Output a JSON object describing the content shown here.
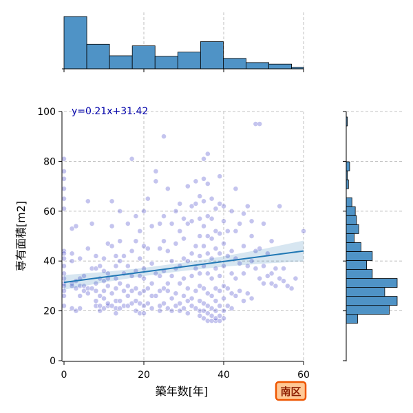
{
  "chart_data": {
    "type": "scatter",
    "xlabel": "築年数[年]",
    "ylabel": "専有面積[m2]",
    "xlim": [
      0,
      60
    ],
    "ylim": [
      0,
      100
    ],
    "xticks": [
      0,
      20,
      40,
      60
    ],
    "yticks": [
      0,
      20,
      40,
      60,
      80,
      100
    ],
    "grid": true,
    "annotation": "y=0.21x+31.42",
    "badge": "南区",
    "regression": {
      "slope": 0.21,
      "intercept": 31.42
    },
    "point_color": "#3a3ac8",
    "line_color": "#1f77b4",
    "hist_color": "#4f93c6",
    "points": [
      [
        0,
        31
      ],
      [
        0,
        33
      ],
      [
        0,
        28
      ],
      [
        0,
        26
      ],
      [
        0,
        30
      ],
      [
        0,
        35
      ],
      [
        0,
        41
      ],
      [
        0,
        44
      ],
      [
        0,
        38
      ],
      [
        0,
        61
      ],
      [
        0,
        65
      ],
      [
        0,
        69
      ],
      [
        0,
        73
      ],
      [
        0,
        76
      ],
      [
        0,
        81
      ],
      [
        0,
        43
      ],
      [
        0,
        22
      ],
      [
        2,
        21
      ],
      [
        2,
        31
      ],
      [
        2,
        30
      ],
      [
        2,
        40
      ],
      [
        2,
        43
      ],
      [
        2,
        53
      ],
      [
        3,
        20
      ],
      [
        3,
        32
      ],
      [
        3,
        29
      ],
      [
        4,
        30
      ],
      [
        4,
        33
      ],
      [
        4,
        26
      ],
      [
        4,
        21
      ],
      [
        4,
        41
      ],
      [
        3,
        54
      ],
      [
        5,
        30
      ],
      [
        5,
        28
      ],
      [
        5,
        34
      ],
      [
        6,
        29
      ],
      [
        6,
        27
      ],
      [
        6,
        45
      ],
      [
        6,
        64
      ],
      [
        7,
        29
      ],
      [
        7,
        37
      ],
      [
        7,
        55
      ],
      [
        8,
        22
      ],
      [
        8,
        24
      ],
      [
        8,
        28
      ],
      [
        8,
        31
      ],
      [
        8,
        37
      ],
      [
        8,
        42
      ],
      [
        9,
        20
      ],
      [
        9,
        22
      ],
      [
        9,
        26
      ],
      [
        9,
        33
      ],
      [
        9,
        38
      ],
      [
        10,
        21
      ],
      [
        10,
        25
      ],
      [
        10,
        28
      ],
      [
        10,
        32
      ],
      [
        10,
        36
      ],
      [
        10,
        41
      ],
      [
        11,
        22
      ],
      [
        11,
        23
      ],
      [
        11,
        30
      ],
      [
        11,
        33
      ],
      [
        11,
        35
      ],
      [
        11,
        47
      ],
      [
        12,
        22
      ],
      [
        12,
        27
      ],
      [
        12,
        46
      ],
      [
        12,
        54
      ],
      [
        12,
        64
      ],
      [
        13,
        19
      ],
      [
        13,
        21
      ],
      [
        13,
        24
      ],
      [
        13,
        29
      ],
      [
        13,
        33
      ],
      [
        13,
        38
      ],
      [
        13,
        42
      ],
      [
        14,
        21
      ],
      [
        14,
        24
      ],
      [
        14,
        31
      ],
      [
        14,
        40
      ],
      [
        14,
        48
      ],
      [
        14,
        60
      ],
      [
        15,
        22
      ],
      [
        15,
        28
      ],
      [
        15,
        35
      ],
      [
        15,
        42
      ],
      [
        16,
        22
      ],
      [
        16,
        26
      ],
      [
        16,
        30
      ],
      [
        16,
        38
      ],
      [
        16,
        55
      ],
      [
        17,
        23
      ],
      [
        17,
        28
      ],
      [
        17,
        34
      ],
      [
        17,
        44
      ],
      [
        17,
        81
      ],
      [
        18,
        20
      ],
      [
        18,
        24
      ],
      [
        18,
        29
      ],
      [
        18,
        36
      ],
      [
        18,
        48
      ],
      [
        18,
        58
      ],
      [
        19,
        19
      ],
      [
        19,
        23
      ],
      [
        19,
        27
      ],
      [
        19,
        34
      ],
      [
        19,
        41
      ],
      [
        19,
        52
      ],
      [
        20,
        19
      ],
      [
        20,
        22
      ],
      [
        20,
        28
      ],
      [
        20,
        33
      ],
      [
        20,
        37
      ],
      [
        20,
        46
      ],
      [
        20,
        60
      ],
      [
        21,
        23
      ],
      [
        21,
        29
      ],
      [
        21,
        45
      ],
      [
        21,
        65
      ],
      [
        22,
        21
      ],
      [
        22,
        26
      ],
      [
        22,
        31
      ],
      [
        22,
        39
      ],
      [
        22,
        54
      ],
      [
        23,
        26
      ],
      [
        23,
        35
      ],
      [
        23,
        72
      ],
      [
        23,
        76
      ],
      [
        24,
        20
      ],
      [
        24,
        22
      ],
      [
        24,
        28
      ],
      [
        24,
        34
      ],
      [
        24,
        45
      ],
      [
        24,
        55
      ],
      [
        25,
        23
      ],
      [
        25,
        29
      ],
      [
        25,
        36
      ],
      [
        25,
        48
      ],
      [
        25,
        58
      ],
      [
        25,
        90
      ],
      [
        26,
        21
      ],
      [
        26,
        28
      ],
      [
        26,
        31
      ],
      [
        26,
        44
      ],
      [
        26,
        69
      ],
      [
        27,
        20
      ],
      [
        27,
        25
      ],
      [
        27,
        34
      ],
      [
        27,
        40
      ],
      [
        27,
        55
      ],
      [
        28,
        22
      ],
      [
        28,
        27
      ],
      [
        28,
        37
      ],
      [
        28,
        47
      ],
      [
        28,
        60
      ],
      [
        29,
        20
      ],
      [
        29,
        23
      ],
      [
        29,
        31
      ],
      [
        29,
        38
      ],
      [
        29,
        52
      ],
      [
        29,
        63
      ],
      [
        30,
        21
      ],
      [
        30,
        26
      ],
      [
        30,
        33
      ],
      [
        30,
        41
      ],
      [
        30,
        49
      ],
      [
        30,
        57
      ],
      [
        31,
        19
      ],
      [
        31,
        24
      ],
      [
        31,
        29
      ],
      [
        31,
        40
      ],
      [
        31,
        55
      ],
      [
        31,
        70
      ],
      [
        32,
        22
      ],
      [
        32,
        25
      ],
      [
        32,
        34
      ],
      [
        32,
        43
      ],
      [
        32,
        56
      ],
      [
        32,
        62
      ],
      [
        33,
        21
      ],
      [
        33,
        28
      ],
      [
        33,
        37
      ],
      [
        33,
        46
      ],
      [
        33,
        63
      ],
      [
        33,
        72
      ],
      [
        34,
        18
      ],
      [
        34,
        20
      ],
      [
        34,
        24
      ],
      [
        34,
        30
      ],
      [
        34,
        35
      ],
      [
        34,
        42
      ],
      [
        34,
        50
      ],
      [
        34,
        57
      ],
      [
        34,
        66
      ],
      [
        35,
        17
      ],
      [
        35,
        20
      ],
      [
        35,
        23
      ],
      [
        35,
        29
      ],
      [
        35,
        38
      ],
      [
        35,
        46
      ],
      [
        35,
        54
      ],
      [
        35,
        64
      ],
      [
        35,
        73
      ],
      [
        35,
        81
      ],
      [
        36,
        16
      ],
      [
        36,
        19
      ],
      [
        36,
        22
      ],
      [
        36,
        27
      ],
      [
        36,
        35
      ],
      [
        36,
        43
      ],
      [
        36,
        50
      ],
      [
        36,
        58
      ],
      [
        36,
        71
      ],
      [
        36,
        83
      ],
      [
        37,
        16
      ],
      [
        37,
        18
      ],
      [
        37,
        21
      ],
      [
        37,
        26
      ],
      [
        37,
        33
      ],
      [
        37,
        41
      ],
      [
        37,
        49
      ],
      [
        37,
        57
      ],
      [
        37,
        65
      ],
      [
        38,
        16
      ],
      [
        38,
        17
      ],
      [
        38,
        20
      ],
      [
        38,
        24
      ],
      [
        38,
        29
      ],
      [
        38,
        37
      ],
      [
        38,
        45
      ],
      [
        38,
        52
      ],
      [
        38,
        61
      ],
      [
        39,
        16
      ],
      [
        39,
        18
      ],
      [
        39,
        22
      ],
      [
        39,
        28
      ],
      [
        39,
        34
      ],
      [
        39,
        43
      ],
      [
        39,
        51
      ],
      [
        39,
        63
      ],
      [
        39,
        74
      ],
      [
        40,
        17
      ],
      [
        40,
        20
      ],
      [
        40,
        25
      ],
      [
        40,
        30
      ],
      [
        40,
        38
      ],
      [
        40,
        47
      ],
      [
        40,
        56
      ],
      [
        40,
        62
      ],
      [
        41,
        22
      ],
      [
        41,
        29
      ],
      [
        41,
        42
      ],
      [
        41,
        52
      ],
      [
        42,
        21
      ],
      [
        42,
        27
      ],
      [
        42,
        35
      ],
      [
        42,
        44
      ],
      [
        42,
        60
      ],
      [
        43,
        26
      ],
      [
        43,
        33
      ],
      [
        43,
        41
      ],
      [
        43,
        52
      ],
      [
        43,
        69
      ],
      [
        44,
        28
      ],
      [
        44,
        39
      ],
      [
        44,
        55
      ],
      [
        45,
        24
      ],
      [
        45,
        35
      ],
      [
        45,
        46
      ],
      [
        45,
        59
      ],
      [
        46,
        27
      ],
      [
        46,
        38
      ],
      [
        46,
        62
      ],
      [
        47,
        25
      ],
      [
        47,
        40
      ],
      [
        47,
        50
      ],
      [
        47,
        56
      ],
      [
        48,
        37
      ],
      [
        48,
        44
      ],
      [
        48,
        95
      ],
      [
        49,
        33
      ],
      [
        49,
        45
      ],
      [
        49,
        95
      ],
      [
        50,
        31
      ],
      [
        50,
        38
      ],
      [
        50,
        55
      ],
      [
        51,
        34
      ],
      [
        51,
        43
      ],
      [
        52,
        31
      ],
      [
        52,
        35
      ],
      [
        52,
        48
      ],
      [
        53,
        30
      ],
      [
        53,
        37
      ],
      [
        54,
        33
      ],
      [
        54,
        62
      ],
      [
        55,
        32
      ],
      [
        55,
        37
      ],
      [
        56,
        30
      ],
      [
        57,
        29
      ],
      [
        58,
        33
      ],
      [
        60,
        52
      ]
    ],
    "top_hist": {
      "bin_edges": [
        0,
        5.7,
        11.4,
        17.1,
        22.8,
        28.5,
        34.2,
        39.9,
        45.6,
        51.3,
        57,
        60
      ],
      "counts": [
        100,
        47,
        25,
        44,
        24,
        32,
        52,
        20,
        12,
        9,
        3
      ]
    },
    "right_hist": {
      "bin_edges": [
        15,
        18.6,
        22.2,
        25.8,
        29.4,
        33,
        36.6,
        40.2,
        43.8,
        47.4,
        51,
        54.6,
        58.2,
        61.8,
        65.4,
        69,
        72.6,
        76.2,
        79.8,
        83.4,
        87,
        90.6,
        94.2,
        97.8
      ],
      "counts": [
        10,
        38,
        45,
        34,
        45,
        23,
        18,
        23,
        13,
        7,
        11,
        9,
        8,
        5,
        0,
        2,
        1,
        3,
        0,
        0,
        0,
        0,
        1
      ]
    }
  }
}
